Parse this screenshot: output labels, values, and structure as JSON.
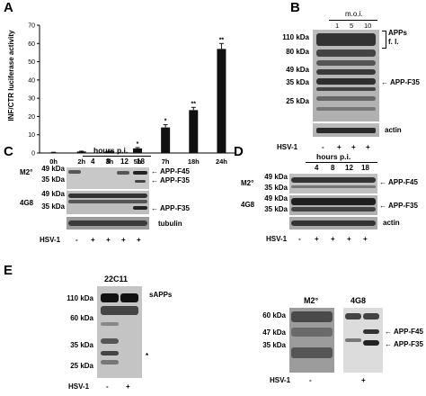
{
  "panelA": {
    "label": "A",
    "ylabel": "INF/CTR luciferase activity",
    "yticks": [
      "0",
      "10",
      "20",
      "30",
      "40",
      "50",
      "60",
      "70"
    ],
    "chart_data": {
      "type": "bar",
      "categories": [
        "0h",
        "2h",
        "3h",
        "5h",
        "7h",
        "18h",
        "24h"
      ],
      "values": [
        0.3,
        0.8,
        0.8,
        2.5,
        14,
        23.5,
        57
      ],
      "errors": [
        0.1,
        0.2,
        0.2,
        0.5,
        1.5,
        1.5,
        3
      ],
      "significance": [
        "",
        "",
        "",
        "*",
        "*",
        "**",
        "**"
      ],
      "ylabel": "INF/CTR luciferase activity",
      "ylim": [
        0,
        70
      ]
    }
  },
  "panelB": {
    "label": "B",
    "moi_label": "m.o.i.",
    "moi_values": [
      "1",
      "5",
      "10"
    ],
    "markers": [
      "110 kDa",
      "80 kDa",
      "49 kDa",
      "35 kDa",
      "25 kDa"
    ],
    "apps_label1": "APPs",
    "apps_label2": "f. l.",
    "f35_label": "APP-F35",
    "actin_label": "actin",
    "hsv_label": "HSV-1",
    "hsv_signs": [
      "-",
      "+",
      "+",
      "+"
    ]
  },
  "panelC": {
    "label": "C",
    "hours_label": "hours p.i.",
    "hours": [
      "4",
      "8",
      "12",
      "18"
    ],
    "antibody1": "M2°",
    "antibody2": "4G8",
    "markers_top": [
      "49 kDa",
      "35 kDa"
    ],
    "markers_mid": [
      "49 kDa",
      "35 kDa"
    ],
    "f45_label": "APP-F45",
    "f35_label": "APP-F35",
    "f35_label_mid": "APP-F35",
    "tubulin_label": "tubulin",
    "hsv_label": "HSV-1",
    "hsv_signs": [
      "-",
      "+",
      "+",
      "+",
      "+"
    ]
  },
  "panelD": {
    "label": "D",
    "hours_label": "hours p.i.",
    "hours": [
      "4",
      "8",
      "12",
      "18"
    ],
    "antibody1": "M2°",
    "antibody2": "4G8",
    "markers_top": [
      "49 kDa",
      "35 kDa"
    ],
    "markers_mid": [
      "49 kDa",
      "35 kDa"
    ],
    "f45_label": "APP-F45",
    "f35_label": "APP-F35",
    "actin_label": "actin",
    "hsv_label": "HSV-1",
    "hsv_signs": [
      "-",
      "+",
      "+",
      "+",
      "+"
    ]
  },
  "panelE": {
    "label": "E",
    "antibody_left": "22C11",
    "markers_left": [
      "110 kDa",
      "60 kDa",
      "35 kDa",
      "25 kDa"
    ],
    "sapps_label": "sAPPs",
    "asterisk": "*",
    "hsv_label": "HSV-1",
    "hsv_signs_left": [
      "-",
      "+"
    ],
    "antibody_m2": "M2°",
    "antibody_4g8": "4G8",
    "markers_right": [
      "60 kDa",
      "47 kDa",
      "35 kDa"
    ],
    "f45_label": "APP-F45",
    "f35_label": "APP-F35",
    "hsv_signs_right": [
      "-",
      "+"
    ]
  }
}
